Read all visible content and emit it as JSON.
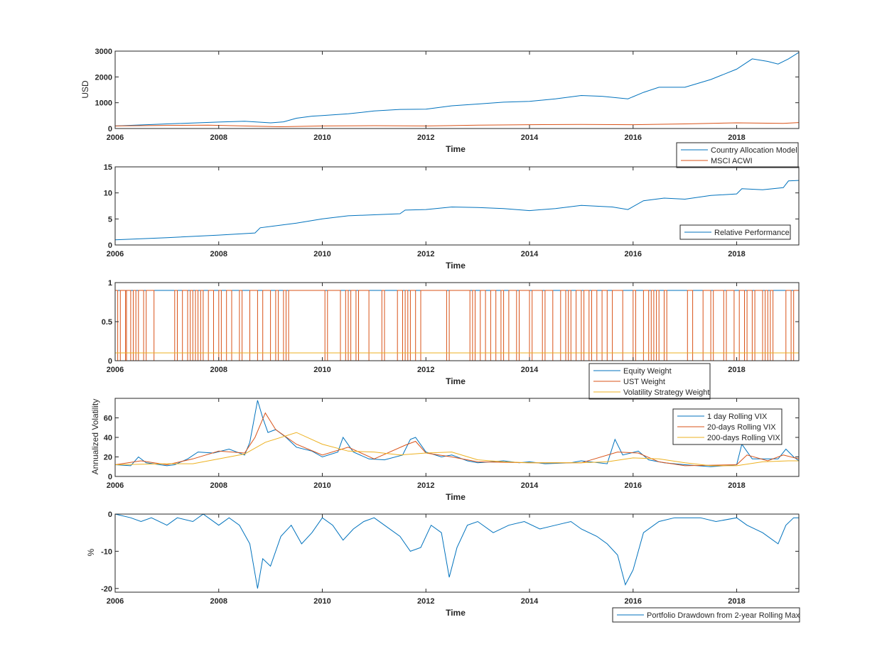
{
  "colors": {
    "blue": "#0072BD",
    "orange": "#D95319",
    "yellow": "#EDB120",
    "axis": "#262626"
  },
  "chart_data": [
    {
      "type": "line",
      "xlabel": "Time",
      "ylabel": "USD",
      "xlim": [
        2006,
        2019.2
      ],
      "ylim": [
        0,
        3000
      ],
      "xticks": [
        "2006",
        "2008",
        "2010",
        "2012",
        "2014",
        "2016",
        "2018"
      ],
      "yticks": [
        "0",
        "1000",
        "2000",
        "3000"
      ],
      "legend_position": "below-right",
      "series": [
        {
          "name": "Country Allocation Model",
          "color": "#0072BD",
          "x": [
            2006,
            2007,
            2008,
            2008.5,
            2009,
            2009.25,
            2009.5,
            2009.8,
            2010,
            2010.5,
            2011,
            2011.5,
            2012,
            2012.5,
            2013,
            2013.5,
            2014,
            2014.5,
            2015,
            2015.4,
            2015.9,
            2016.2,
            2016.5,
            2017,
            2017.5,
            2018,
            2018.3,
            2018.6,
            2018.8,
            2019,
            2019.2
          ],
          "y": [
            100,
            180,
            250,
            280,
            220,
            260,
            400,
            480,
            500,
            570,
            680,
            740,
            750,
            880,
            950,
            1020,
            1050,
            1150,
            1280,
            1250,
            1150,
            1400,
            1600,
            1600,
            1900,
            2300,
            2700,
            2600,
            2500,
            2700,
            2950
          ]
        },
        {
          "name": "MSCI ACWI",
          "color": "#D95319",
          "x": [
            2006,
            2007,
            2007.8,
            2009.2,
            2010,
            2011,
            2012,
            2013,
            2014,
            2015,
            2016,
            2017,
            2018,
            2018.9,
            2019.2
          ],
          "y": [
            100,
            120,
            130,
            70,
            100,
            110,
            100,
            130,
            150,
            160,
            150,
            180,
            220,
            200,
            230
          ]
        }
      ]
    },
    {
      "type": "line",
      "xlabel": "Time",
      "xlim": [
        2006,
        2019.2
      ],
      "ylim": [
        0,
        15
      ],
      "xticks": [
        "2006",
        "2008",
        "2010",
        "2012",
        "2014",
        "2016",
        "2018"
      ],
      "yticks": [
        "0",
        "5",
        "10",
        "15"
      ],
      "legend_position": "bottom-right",
      "series": [
        {
          "name": "Relative Performance",
          "color": "#0072BD",
          "x": [
            2006,
            2007,
            2008,
            2008.7,
            2008.8,
            2009.5,
            2010,
            2010.5,
            2011,
            2011.5,
            2011.6,
            2012,
            2012.5,
            2013,
            2013.5,
            2014,
            2014.5,
            2015,
            2015.6,
            2015.9,
            2016.2,
            2016.6,
            2017,
            2017.5,
            2018,
            2018.1,
            2018.5,
            2018.9,
            2019,
            2019.2
          ],
          "y": [
            1,
            1.4,
            1.9,
            2.3,
            3.3,
            4.2,
            5,
            5.6,
            5.8,
            6.0,
            6.7,
            6.8,
            7.3,
            7.2,
            7.0,
            6.6,
            7.0,
            7.6,
            7.3,
            6.8,
            8.5,
            9.0,
            8.8,
            9.5,
            9.8,
            10.8,
            10.6,
            11.0,
            12.3,
            12.4
          ]
        }
      ]
    },
    {
      "type": "line",
      "xlabel": "Time",
      "xlim": [
        2006,
        2019.2
      ],
      "ylim": [
        0,
        1
      ],
      "xticks": [
        "2006",
        "2008",
        "2010",
        "2012",
        "2014",
        "2016",
        "2018"
      ],
      "yticks": [
        "0",
        "0.5",
        "1"
      ],
      "legend_position": "below-right",
      "switch_times": [
        2006.0,
        2006.05,
        2006.1,
        2006.2,
        2006.22,
        2006.3,
        2006.35,
        2006.4,
        2006.45,
        2006.55,
        2006.6,
        2006.75,
        2007.15,
        2007.2,
        2007.3,
        2007.4,
        2007.45,
        2007.5,
        2007.55,
        2007.6,
        2007.65,
        2007.7,
        2007.8,
        2007.9,
        2008.0,
        2008.05,
        2008.15,
        2008.25,
        2008.4,
        2008.45,
        2008.6,
        2008.75,
        2008.85,
        2009.0,
        2009.1,
        2009.15,
        2009.25,
        2009.3,
        2009.35,
        2010.05,
        2010.1,
        2010.35,
        2010.45,
        2010.5,
        2010.55,
        2010.65,
        2010.7,
        2010.9,
        2011.15,
        2011.2,
        2011.45,
        2011.55,
        2011.6,
        2011.65,
        2011.7,
        2011.8,
        2011.9,
        2012.4,
        2012.45,
        2012.85,
        2012.9,
        2012.95,
        2013.05,
        2013.15,
        2013.25,
        2013.35,
        2013.45,
        2013.5,
        2013.6,
        2013.75,
        2013.8,
        2014.0,
        2014.05,
        2014.25,
        2014.3,
        2014.45,
        2014.6,
        2014.7,
        2014.75,
        2014.8,
        2014.9,
        2015.0,
        2015.05,
        2015.15,
        2015.2,
        2015.3,
        2015.4,
        2015.5,
        2015.6,
        2015.8,
        2016.0,
        2016.05,
        2016.2,
        2016.3,
        2016.35,
        2016.4,
        2016.45,
        2016.5,
        2016.6,
        2016.65,
        2017.05,
        2017.15,
        2017.35,
        2017.5,
        2017.55,
        2017.75,
        2017.8,
        2017.95,
        2018.05,
        2018.15,
        2018.2,
        2018.3,
        2018.35,
        2018.5,
        2018.55,
        2018.6,
        2018.65,
        2018.7,
        2018.95,
        2019.05,
        2019.1
      ],
      "series": [
        {
          "name": "Equity Weight",
          "color": "#0072BD",
          "x": [
            2006,
            2019.2
          ],
          "y": [
            0.9,
            0.9
          ]
        },
        {
          "name": "UST Weight",
          "color": "#D95319",
          "switch_between": [
            0,
            0.9
          ]
        },
        {
          "name": "Volatility Strategy Weight",
          "color": "#EDB120",
          "x": [
            2006,
            2019.2
          ],
          "y": [
            0.1,
            0.1
          ]
        }
      ]
    },
    {
      "type": "line",
      "xlabel": "Time",
      "ylabel": "Annualized Volatility",
      "xlim": [
        2006,
        2019.2
      ],
      "ylim": [
        0,
        80
      ],
      "xticks": [
        "2006",
        "2008",
        "2010",
        "2012",
        "2014",
        "2016",
        "2018"
      ],
      "yticks": [
        "0",
        "20",
        "40",
        "60"
      ],
      "legend_position": "top-right",
      "series": [
        {
          "name": "1 day Rolling VIX",
          "color": "#0072BD",
          "x": [
            2006,
            2006.3,
            2006.45,
            2006.6,
            2007,
            2007.15,
            2007.4,
            2007.6,
            2007.9,
            2008.2,
            2008.5,
            2008.6,
            2008.75,
            2008.85,
            2008.95,
            2009.1,
            2009.3,
            2009.5,
            2009.8,
            2010.0,
            2010.3,
            2010.4,
            2010.6,
            2010.9,
            2011.2,
            2011.55,
            2011.7,
            2011.8,
            2012.0,
            2012.3,
            2012.5,
            2012.8,
            2013.0,
            2013.5,
            2013.8,
            2014.0,
            2014.3,
            2014.8,
            2015.0,
            2015.5,
            2015.65,
            2015.8,
            2016.1,
            2016.3,
            2016.6,
            2017.0,
            2017.5,
            2018.0,
            2018.1,
            2018.3,
            2018.8,
            2018.95,
            2019.1,
            2019.2
          ],
          "y": [
            12,
            11,
            20,
            14,
            11,
            12,
            18,
            25,
            24,
            28,
            22,
            35,
            78,
            60,
            45,
            48,
            40,
            30,
            26,
            20,
            25,
            40,
            25,
            18,
            17,
            22,
            38,
            40,
            25,
            20,
            22,
            16,
            14,
            16,
            14,
            15,
            13,
            14,
            16,
            13,
            38,
            22,
            26,
            17,
            14,
            12,
            10,
            12,
            33,
            18,
            18,
            28,
            20,
            16
          ]
        },
        {
          "name": "20-days Rolling VIX",
          "color": "#D95319",
          "x": [
            2006,
            2006.5,
            2007,
            2007.5,
            2008,
            2008.5,
            2008.7,
            2008.9,
            2009.1,
            2009.5,
            2010,
            2010.5,
            2011,
            2011.6,
            2011.8,
            2012,
            2012.5,
            2013,
            2014,
            2015,
            2015.7,
            2016.1,
            2016.5,
            2017,
            2018,
            2018.2,
            2018.6,
            2018.9,
            2019.2
          ],
          "y": [
            12,
            16,
            12,
            18,
            26,
            24,
            40,
            65,
            48,
            33,
            22,
            30,
            18,
            32,
            36,
            24,
            20,
            15,
            14,
            14,
            25,
            24,
            15,
            11,
            12,
            22,
            16,
            22,
            18
          ]
        },
        {
          "name": "200-days Rolling VIX",
          "color": "#EDB120",
          "x": [
            2006,
            2007,
            2007.5,
            2008,
            2008.5,
            2008.9,
            2009.5,
            2010,
            2010.5,
            2011,
            2011.5,
            2012,
            2012.5,
            2013,
            2013.5,
            2014,
            2015,
            2015.5,
            2016,
            2016.5,
            2017,
            2017.5,
            2018,
            2018.5,
            2019,
            2019.2
          ],
          "y": [
            12,
            13,
            13,
            18,
            23,
            35,
            45,
            33,
            26,
            25,
            22,
            24,
            25,
            17,
            15,
            14,
            14,
            15,
            19,
            18,
            14,
            11,
            11,
            15,
            16,
            16
          ]
        }
      ]
    },
    {
      "type": "line",
      "xlabel": "Time",
      "ylabel": "%",
      "xlim": [
        2006,
        2019.2
      ],
      "ylim": [
        -21,
        0
      ],
      "xticks": [
        "2006",
        "2008",
        "2010",
        "2012",
        "2014",
        "2016",
        "2018"
      ],
      "yticks": [
        "-20",
        "-10",
        "0"
      ],
      "legend_position": "below-right",
      "series": [
        {
          "name": "Portfolio Drawdown from 2-year Rolling Max",
          "color": "#0072BD",
          "x": [
            2006,
            2006.3,
            2006.5,
            2006.7,
            2007,
            2007.2,
            2007.5,
            2007.7,
            2008,
            2008.2,
            2008.4,
            2008.6,
            2008.75,
            2008.85,
            2009.0,
            2009.2,
            2009.4,
            2009.6,
            2009.8,
            2010.0,
            2010.2,
            2010.4,
            2010.6,
            2010.8,
            2011.0,
            2011.2,
            2011.5,
            2011.7,
            2011.9,
            2012.1,
            2012.3,
            2012.45,
            2012.6,
            2012.8,
            2013.0,
            2013.3,
            2013.6,
            2013.9,
            2014.2,
            2014.5,
            2014.8,
            2015.0,
            2015.3,
            2015.5,
            2015.7,
            2015.85,
            2016.0,
            2016.2,
            2016.5,
            2016.8,
            2017.0,
            2017.3,
            2017.6,
            2018.0,
            2018.2,
            2018.5,
            2018.8,
            2018.95,
            2019.1,
            2019.2
          ],
          "y": [
            0,
            -1,
            -2,
            -1,
            -3,
            -1,
            -2,
            0,
            -3,
            -1,
            -3,
            -8,
            -20,
            -12,
            -14,
            -6,
            -3,
            -8,
            -5,
            -1,
            -3,
            -7,
            -4,
            -2,
            -1,
            -3,
            -6,
            -10,
            -9,
            -3,
            -5,
            -17,
            -9,
            -3,
            -2,
            -5,
            -3,
            -2,
            -4,
            -3,
            -2,
            -4,
            -6,
            -8,
            -11,
            -19,
            -15,
            -5,
            -2,
            -1,
            -1,
            -1,
            -2,
            -1,
            -3,
            -5,
            -8,
            -3,
            -1,
            -1
          ]
        }
      ]
    }
  ]
}
